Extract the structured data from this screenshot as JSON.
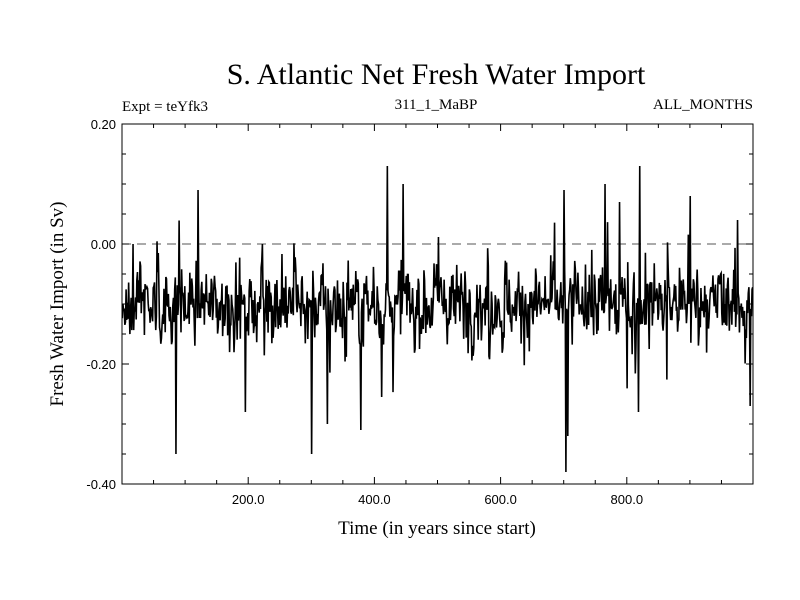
{
  "chart_data": {
    "type": "line",
    "title": "S. Atlantic Net Fresh Water Import",
    "subtitle_left": "Expt = teYfk3",
    "subtitle_center": "311_1_MaBP",
    "subtitle_right": "ALL_MONTHS",
    "xlabel": "Time (in years since start)",
    "ylabel": "Fresh Water Import (in Sv)",
    "xlim": [
      0,
      1000
    ],
    "ylim": [
      -0.4,
      0.2
    ],
    "x_ticks": [
      {
        "value": 200,
        "label": "200.0"
      },
      {
        "value": 400,
        "label": "400.0"
      },
      {
        "value": 600,
        "label": "600.0"
      },
      {
        "value": 800,
        "label": "800.0"
      }
    ],
    "y_ticks": [
      {
        "value": 0.2,
        "label": "0.20"
      },
      {
        "value": 0.0,
        "label": "0.00"
      },
      {
        "value": -0.2,
        "label": "-0.20"
      },
      {
        "value": -0.4,
        "label": "-0.40"
      }
    ],
    "reference_line": {
      "value": 0.0,
      "style": "dashed"
    },
    "series": [
      {
        "name": "net fresh water import",
        "mean": -0.1,
        "typical_range": [
          -0.22,
          0.0
        ],
        "n_points": 1000,
        "extremes": [
          {
            "x": 17,
            "y": 0.0
          },
          {
            "x": 85,
            "y": -0.35
          },
          {
            "x": 120,
            "y": 0.09
          },
          {
            "x": 195,
            "y": -0.28
          },
          {
            "x": 300,
            "y": -0.35
          },
          {
            "x": 325,
            "y": -0.3
          },
          {
            "x": 378,
            "y": -0.31
          },
          {
            "x": 420,
            "y": 0.13
          },
          {
            "x": 445,
            "y": 0.1
          },
          {
            "x": 700,
            "y": 0.09
          },
          {
            "x": 703,
            "y": -0.38
          },
          {
            "x": 706,
            "y": -0.32
          },
          {
            "x": 765,
            "y": 0.1
          },
          {
            "x": 788,
            "y": 0.07
          },
          {
            "x": 818,
            "y": -0.28
          },
          {
            "x": 820,
            "y": 0.13
          },
          {
            "x": 900,
            "y": 0.08
          },
          {
            "x": 975,
            "y": 0.04
          },
          {
            "x": 995,
            "y": -0.27
          }
        ]
      }
    ]
  }
}
